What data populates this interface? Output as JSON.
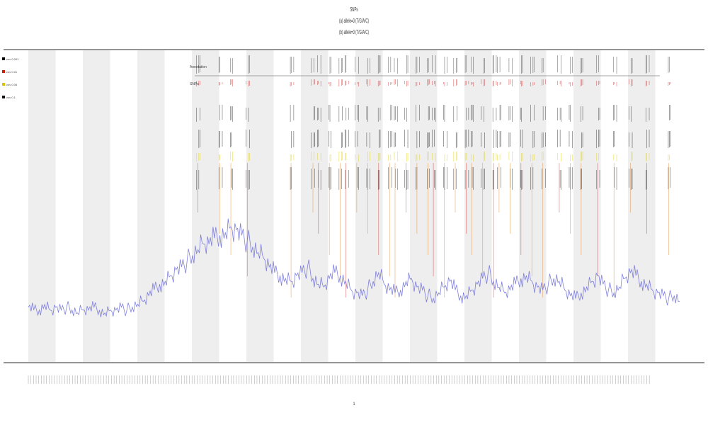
{
  "header": {
    "lines": [
      "SNPs",
      "(a) allele=0 (T/G/A/C)",
      "(b) allele=0 (T/G/A/C)"
    ]
  },
  "legend": {
    "items": [
      {
        "label": "cov 0.001",
        "color": "#000000"
      },
      {
        "label": "cov 0.01",
        "color": "#cc2200"
      },
      {
        "label": "cov 0.05",
        "color": "#d9c200"
      },
      {
        "label": "cov 0.1",
        "color": "#111111"
      }
    ]
  },
  "track_labels": [
    "Annotation",
    "SNPs"
  ],
  "xaxis_caption": "1",
  "colors": {
    "band_shade": "#eeeeee",
    "coverage": "#6a6ad8",
    "variant_orange": "#e07a1a",
    "variant_red": "#d22020",
    "variant_yellow": "#e0d000",
    "axis": "#555555"
  },
  "chart_data": {
    "type": "line",
    "title": "",
    "xlabel": "1",
    "ylabel": "",
    "n_positions": 120,
    "shaded_bands": 12,
    "series": [
      {
        "name": "",
        "values": [
          0.06,
          0.05,
          0.05,
          0.07,
          0.05,
          0.06,
          0.05,
          0.06,
          0.05,
          0.04,
          0.05,
          0.05,
          0.06,
          0.05,
          0.04,
          0.05,
          0.05,
          0.06,
          0.05,
          0.06,
          0.07,
          0.08,
          0.1,
          0.12,
          0.14,
          0.15,
          0.17,
          0.19,
          0.2,
          0.22,
          0.24,
          0.26,
          0.28,
          0.28,
          0.3,
          0.31,
          0.32,
          0.34,
          0.33,
          0.31,
          0.29,
          0.27,
          0.25,
          0.23,
          0.2,
          0.18,
          0.17,
          0.16,
          0.15,
          0.17,
          0.18,
          0.2,
          0.16,
          0.14,
          0.13,
          0.16,
          0.18,
          0.17,
          0.15,
          0.12,
          0.11,
          0.1,
          0.12,
          0.15,
          0.18,
          0.14,
          0.12,
          0.11,
          0.12,
          0.15,
          0.16,
          0.13,
          0.12,
          0.1,
          0.09,
          0.11,
          0.13,
          0.15,
          0.12,
          0.1,
          0.1,
          0.12,
          0.14,
          0.16,
          0.18,
          0.15,
          0.13,
          0.11,
          0.12,
          0.14,
          0.16,
          0.17,
          0.15,
          0.13,
          0.12,
          0.14,
          0.16,
          0.15,
          0.12,
          0.1,
          0.09,
          0.11,
          0.13,
          0.15,
          0.17,
          0.14,
          0.12,
          0.11,
          0.13,
          0.16,
          0.18,
          0.17,
          0.15,
          0.14,
          0.12,
          0.11,
          0.1,
          0.09,
          0.1,
          0.08
        ]
      }
    ],
    "variant_positions": [
      31,
      35,
      37,
      40,
      48,
      52,
      53,
      55,
      57,
      58,
      60,
      62,
      64,
      66,
      67,
      69,
      71,
      73,
      74,
      76,
      78,
      80,
      81,
      83,
      85,
      86,
      88,
      90,
      92,
      94,
      97,
      99,
      101,
      104,
      107,
      110,
      113,
      117
    ]
  }
}
